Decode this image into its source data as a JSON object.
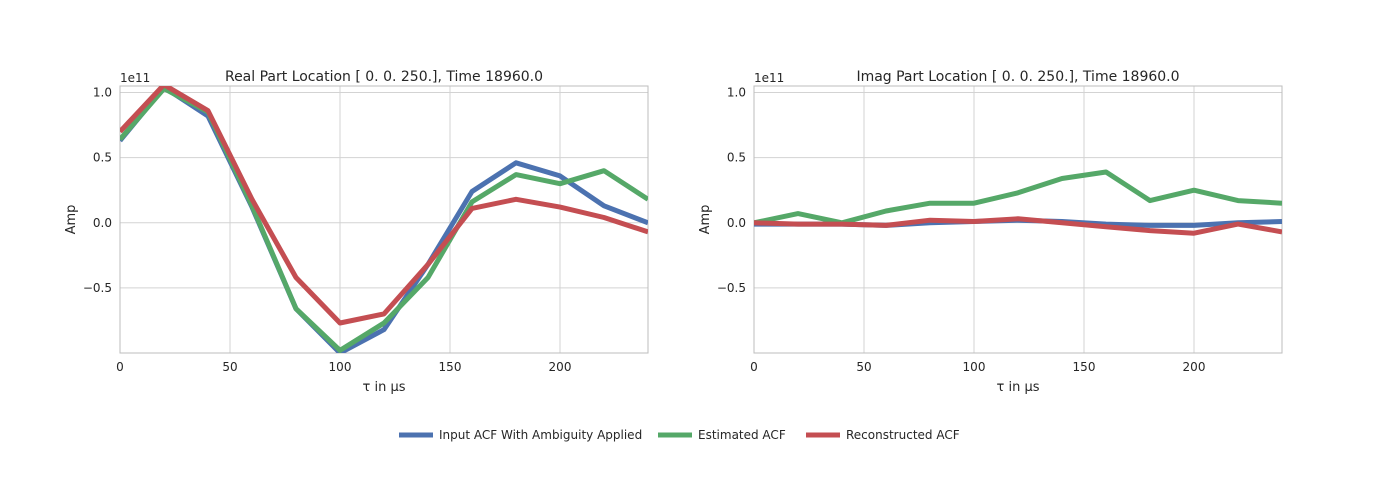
{
  "chart_data": [
    {
      "type": "line",
      "title": "Real Part Location [   0.    0.  250.], Time 18960.0",
      "xlabel": "τ in μs",
      "ylabel": "Amp",
      "scale_label": "1e11",
      "xlim": [
        0,
        240
      ],
      "ylim": [
        -1.0,
        1.05
      ],
      "xticks": [
        0,
        50,
        100,
        150,
        200
      ],
      "xtick_labels": [
        "0",
        "50",
        "100",
        "150",
        "200"
      ],
      "yticks": [
        -0.5,
        0.0,
        0.5,
        1.0
      ],
      "ytick_labels": [
        "−0.5",
        "0.0",
        "0.5",
        "1.0"
      ],
      "grid": true,
      "x": [
        0,
        20,
        40,
        60,
        80,
        100,
        120,
        140,
        160,
        180,
        200,
        220,
        240
      ],
      "series": [
        {
          "name": "Input ACF With Ambiguity Applied",
          "color": "#4c72b0",
          "values": [
            0.63,
            1.04,
            0.82,
            0.12,
            -0.66,
            -1.0,
            -0.82,
            -0.32,
            0.24,
            0.46,
            0.36,
            0.13,
            0.0
          ]
        },
        {
          "name": "Estimated ACF",
          "color": "#55a868",
          "values": [
            0.64,
            1.03,
            0.85,
            0.13,
            -0.66,
            -0.98,
            -0.77,
            -0.42,
            0.16,
            0.37,
            0.3,
            0.4,
            0.18
          ]
        },
        {
          "name": "Reconstructed ACF",
          "color": "#c44e52",
          "values": [
            0.7,
            1.06,
            0.86,
            0.18,
            -0.42,
            -0.77,
            -0.7,
            -0.32,
            0.11,
            0.18,
            0.12,
            0.04,
            -0.07
          ]
        }
      ]
    },
    {
      "type": "line",
      "title": "Imag Part Location [   0.    0.  250.], Time 18960.0",
      "xlabel": "τ in μs",
      "ylabel": "Amp",
      "scale_label": "1e11",
      "xlim": [
        0,
        240
      ],
      "ylim": [
        -1.0,
        1.05
      ],
      "xticks": [
        0,
        50,
        100,
        150,
        200
      ],
      "xtick_labels": [
        "0",
        "50",
        "100",
        "150",
        "200"
      ],
      "yticks": [
        -0.5,
        0.0,
        0.5,
        1.0
      ],
      "ytick_labels": [
        "−0.5",
        "0.0",
        "0.5",
        "1.0"
      ],
      "grid": true,
      "x": [
        0,
        20,
        40,
        60,
        80,
        100,
        120,
        140,
        160,
        180,
        200,
        220,
        240
      ],
      "series": [
        {
          "name": "Input ACF With Ambiguity Applied",
          "color": "#4c72b0",
          "values": [
            -0.01,
            -0.01,
            -0.01,
            -0.02,
            0.0,
            0.01,
            0.02,
            0.01,
            -0.01,
            -0.02,
            -0.02,
            0.0,
            0.01
          ]
        },
        {
          "name": "Estimated ACF",
          "color": "#55a868",
          "values": [
            0.0,
            0.07,
            0.0,
            0.09,
            0.15,
            0.15,
            0.23,
            0.34,
            0.39,
            0.17,
            0.25,
            0.17,
            0.15
          ]
        },
        {
          "name": "Reconstructed ACF",
          "color": "#c44e52",
          "values": [
            0.0,
            -0.01,
            -0.01,
            -0.02,
            0.02,
            0.01,
            0.03,
            0.0,
            -0.03,
            -0.06,
            -0.08,
            -0.01,
            -0.07
          ]
        }
      ]
    }
  ],
  "legend": {
    "placement": "bottom-center",
    "items": [
      {
        "label": "Input ACF With Ambiguity Applied",
        "color": "#4c72b0"
      },
      {
        "label": "Estimated ACF",
        "color": "#55a868"
      },
      {
        "label": "Reconstructed ACF",
        "color": "#c44e52"
      }
    ]
  }
}
